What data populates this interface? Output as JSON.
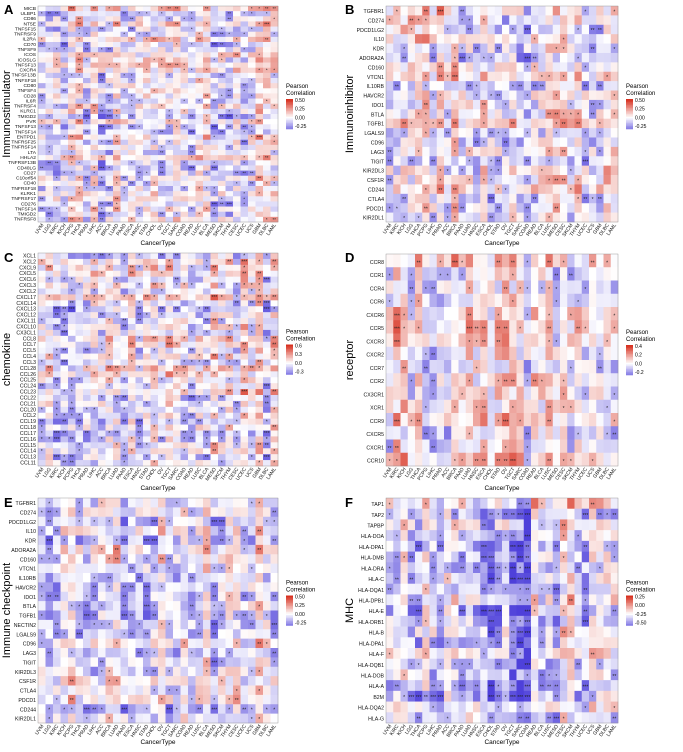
{
  "figure": {
    "cancer_types_1": [
      "UVM",
      "LGG",
      "KIRC",
      "KICH",
      "PCPG",
      "THCA",
      "PRAD",
      "LIHC",
      "ACC",
      "BRCA",
      "LUAD",
      "PAAD",
      "ESCA",
      "HNSC",
      "STAD",
      "CHOL",
      "OV",
      "TGCT",
      "SARC",
      "COAD",
      "READ",
      "LUSC",
      "BLCA",
      "MESO",
      "SKCM",
      "THYM",
      "CESC",
      "UCEC",
      "UCS",
      "GBM",
      "DLBC",
      "LAML"
    ],
    "cancer_types_2": [
      "UVM",
      "KIRC",
      "KICH",
      "LGG",
      "THCA",
      "PCPG",
      "LIHC",
      "PRAD",
      "ACC",
      "BRCA",
      "PAAD",
      "LUAD",
      "HNSC",
      "ESCA",
      "CHOL",
      "STAD",
      "OV",
      "TGCT",
      "SARC",
      "COAD",
      "READ",
      "BLCA",
      "LUSC",
      "MESO",
      "CESC",
      "SKCM",
      "THYM",
      "UCEC",
      "UCS",
      "GBM",
      "DLBC",
      "LAML"
    ],
    "color_high": "#d7301f",
    "color_mid": "#ffffff",
    "color_low": "#3a2bd6"
  },
  "chart_data": [
    {
      "type": "heatmap",
      "panel": "A",
      "ylabel": "Immunostimulator",
      "xlabel": "CancerType",
      "legend_title": "Pearson Correlation",
      "legend_ticks": [
        "0.50",
        "0.25",
        "0.00",
        "-0.25"
      ],
      "scale_max": 0.5,
      "rows": [
        "MICB",
        "ULBP1",
        "CD86",
        "NT5E",
        "TNFSF15",
        "TNFRSF9",
        "IL2RA",
        "CD70",
        "TNFSF9",
        "ICOS",
        "ICOSLG",
        "TNFSF13",
        "CXCR4",
        "TNFSF13B",
        "TNFSF18",
        "CD80",
        "TNFSF4",
        "CD28",
        "IL6R",
        "TNFRSF4",
        "KLRC1",
        "TMIGD2",
        "PVR",
        "TNFSF13",
        "TNFSF14",
        "ENTPD1",
        "TNFRSF25",
        "TNFRSF14",
        "LTA",
        "HHLA2",
        "TNFRSF13B",
        "CD40LG",
        "CD27",
        "C10orf54",
        "CD40",
        "TNFRSF18",
        "KLRK1",
        "TNFRSF17",
        "CD276",
        "TNFSF14",
        "TMIGD2",
        "TNFRSF8"
      ],
      "columns_key": "cancer_types_1",
      "seed": 11
    },
    {
      "type": "heatmap",
      "panel": "B",
      "ylabel": "Immunoinhibitor",
      "xlabel": "CancerType",
      "legend_title": "Pearson Correlation",
      "legend_ticks": [
        "0.50",
        "0.25",
        "0.00",
        "-0.25"
      ],
      "scale_max": 0.5,
      "rows": [
        "TGFBR1",
        "CD274",
        "PDCD1LG2",
        "IL10",
        "KDR",
        "ADORA2A",
        "CD160",
        "VTCN1",
        "IL10RB",
        "HAVCR2",
        "IDO1",
        "BTLA",
        "TGFB1",
        "LGALS9",
        "CD96",
        "LAG3",
        "TIGIT",
        "KIR2DL3",
        "CSF1R",
        "CD244",
        "CTLA4",
        "PDCD1",
        "KIR2DL1"
      ],
      "columns_key": "cancer_types_2",
      "seed": 23
    },
    {
      "type": "heatmap",
      "panel": "C",
      "ylabel": "chemokine",
      "xlabel": "CancerType",
      "legend_title": "Pearson Correlation",
      "legend_ticks": [
        "0.6",
        "0.3",
        "0.0",
        "-0.3"
      ],
      "scale_max": 0.6,
      "rows": [
        "XCL1",
        "XCL2",
        "CXCL9",
        "CXCL5",
        "CXCL6",
        "CXCL3",
        "CXCL2",
        "CXCL17",
        "CXCL14",
        "CXCL13",
        "CXCL12",
        "CXCL11",
        "CXCL10",
        "CX3CL1",
        "CCL8",
        "CCL7",
        "CCL5",
        "CCL4",
        "CCL3",
        "CCL28",
        "CCL26",
        "CCL25",
        "CCL24",
        "CCL23",
        "CCL22",
        "CCL21",
        "CCL20",
        "CCL2",
        "CCL19",
        "CCL18",
        "CCL17",
        "CCL16",
        "CCL15",
        "CCL14",
        "CCL13",
        "CCL11"
      ],
      "columns_key": "cancer_types_1",
      "seed": 37
    },
    {
      "type": "heatmap",
      "panel": "D",
      "ylabel": "receptor",
      "xlabel": "CancerType",
      "legend_title": "Pearson Correlation",
      "legend_ticks": [
        "0.4",
        "0.2",
        "0.0",
        "-0.2"
      ],
      "scale_max": 0.4,
      "rows": [
        "CCR8",
        "CCR1",
        "CCR4",
        "CCR6",
        "CXCR6",
        "CCR5",
        "CXCR3",
        "CXCR2",
        "CCR7",
        "CCR2",
        "CX3CR1",
        "XCR1",
        "CCR9",
        "CXCR5",
        "CXCR1",
        "CCR10"
      ],
      "columns_key": "cancer_types_2",
      "seed": 41
    },
    {
      "type": "heatmap",
      "panel": "E",
      "ylabel": "Immune checkpoint",
      "xlabel": "CancerType",
      "legend_title": "Pearson Correlation",
      "legend_ticks": [
        "0.50",
        "0.25",
        "0.00",
        "-0.25"
      ],
      "scale_max": 0.5,
      "rows": [
        "TGFBR1",
        "CD274",
        "PDCD1LG2",
        "IL10",
        "KDR",
        "ADORA2A",
        "CD160",
        "VTCN1",
        "IL10RB",
        "HAVCR2",
        "IDO1",
        "BTLA",
        "TGFB1",
        "NECTIN2",
        "LGALS9",
        "CD96",
        "LAG3",
        "TIGIT",
        "KIR2DL3",
        "CSF1R",
        "CTLA4",
        "PDCD1",
        "CD244",
        "KIR2DL1"
      ],
      "columns_key": "cancer_types_1",
      "seed": 53
    },
    {
      "type": "heatmap",
      "panel": "F",
      "ylabel": "MHC",
      "xlabel": "CancerType",
      "legend_title": "Pearson Correlation",
      "legend_ticks": [
        "0.25",
        "0.00",
        "-0.25",
        "-0.50"
      ],
      "scale_max": 0.5,
      "rows": [
        "TAP1",
        "TAP2",
        "TAPBP",
        "HLA-DOA",
        "HLA-DPA1",
        "HLA-DMB",
        "HLA-DRA",
        "HLA-C",
        "HLA-DQA1",
        "HLA-DPB1",
        "HLA-E",
        "HLA-DRB1",
        "HLA-B",
        "HLA-DPA1",
        "HLA-F",
        "HLA-DQB1",
        "HLA-DOB",
        "HLA-A",
        "B2M",
        "HLA-DQA2",
        "HLA-G"
      ],
      "columns_key": "cancer_types_2",
      "seed": 67
    }
  ]
}
